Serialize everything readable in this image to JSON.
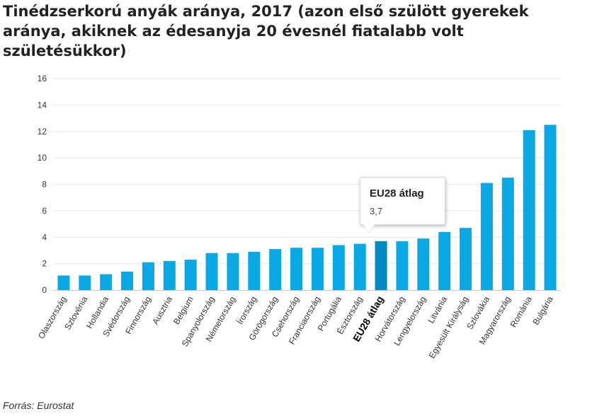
{
  "title": "Tinédzserkorú anyák aránya, 2017 (azon első szülött gyerekek aránya, akiknek az édesanyja 20 évesnél fiatalabb volt születésükkor)",
  "source": "Forrás: Eurostat",
  "colors": {
    "bar": "#0aa8e5",
    "highlight": "#0089bf",
    "grid": "#e6e6e6",
    "axis": "#c9c9c9"
  },
  "tooltip": {
    "title": "EU28 átlag",
    "value": "3,7"
  },
  "chart_data": {
    "type": "bar",
    "categories": [
      "Olaszország",
      "Szlovénia",
      "Hollandia",
      "Svédország",
      "Finnország",
      "Ausztria",
      "Belgium",
      "Spanyolország",
      "Németország",
      "Írország",
      "Görögország",
      "Csehország",
      "Franciaország",
      "Portugália",
      "Észtország",
      "EU28 átlag",
      "Horvátország",
      "Lengyelország",
      "Litvánia",
      "Egyesült Királyság",
      "Szlovákia",
      "Magyarország",
      "Románia",
      "Bulgária"
    ],
    "values": [
      1.1,
      1.1,
      1.2,
      1.4,
      2.1,
      2.2,
      2.3,
      2.8,
      2.8,
      2.9,
      3.1,
      3.2,
      3.2,
      3.4,
      3.5,
      3.7,
      3.7,
      3.9,
      4.4,
      4.7,
      8.1,
      8.5,
      12.1,
      12.5
    ],
    "highlight": "EU28 átlag",
    "ylim": [
      0,
      16
    ],
    "yticks": [
      0,
      2,
      4,
      6,
      8,
      10,
      12,
      14,
      16
    ],
    "grid": true
  }
}
